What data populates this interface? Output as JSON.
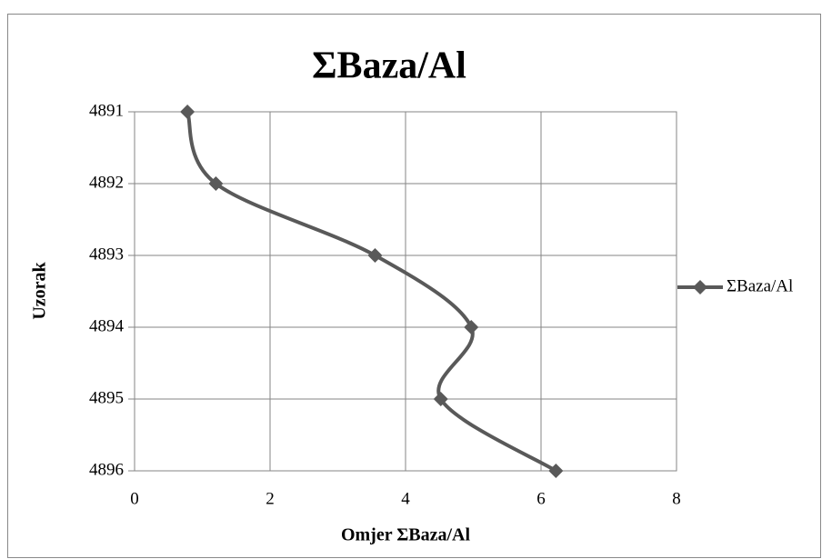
{
  "chart_data": {
    "type": "line",
    "orientation": "categories-vertical",
    "title": "ΣBaza/Al",
    "x_label": "Omjer ΣBaza/Al",
    "y_label": "Uzorak",
    "categories": [
      "4891",
      "4892",
      "4893",
      "4894",
      "4895",
      "4896"
    ],
    "series": [
      {
        "name": "ΣBaza/Al",
        "color": "#595959",
        "values": [
          0.78,
          1.2,
          3.55,
          4.97,
          4.52,
          6.22
        ]
      }
    ],
    "xlim": [
      0,
      8
    ],
    "xticks": [
      0,
      2,
      4,
      6,
      8
    ],
    "grid": true,
    "legend": "right",
    "smooth": true
  }
}
